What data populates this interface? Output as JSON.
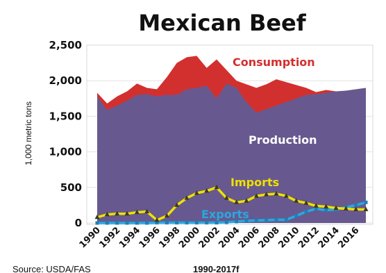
{
  "chart_data": {
    "type": "area",
    "title": "Mexican Beef",
    "ylabel": "1,000 metric tons",
    "ylim": [
      0,
      2500
    ],
    "yticks": [
      "0",
      "500",
      "1,000",
      "1,500",
      "2,000",
      "2,500"
    ],
    "xtick_labels": [
      "1990",
      "1992",
      "1994",
      "1996",
      "1998",
      "2000",
      "2002",
      "2004",
      "2006",
      "2008",
      "2010",
      "2012",
      "2014",
      "2016"
    ],
    "x": [
      1990,
      1991,
      1992,
      1993,
      1994,
      1995,
      1996,
      1997,
      1998,
      1999,
      2000,
      2001,
      2002,
      2003,
      2004,
      2005,
      2006,
      2007,
      2008,
      2009,
      2010,
      2011,
      2012,
      2013,
      2014,
      2015,
      2016,
      2017
    ],
    "series": [
      {
        "name": "Consumption",
        "color": "#d2302f",
        "values": [
          1830,
          1680,
          1780,
          1850,
          1960,
          1900,
          1880,
          2050,
          2250,
          2330,
          2350,
          2180,
          2300,
          2150,
          2000,
          1950,
          1900,
          1950,
          2020,
          1980,
          1940,
          1900,
          1840,
          1870,
          1850,
          1820,
          1800,
          1810
        ]
      },
      {
        "name": "Production",
        "color": "#67598f",
        "values": [
          1780,
          1590,
          1650,
          1720,
          1800,
          1810,
          1780,
          1800,
          1800,
          1880,
          1900,
          1930,
          1750,
          1960,
          1900,
          1700,
          1550,
          1600,
          1650,
          1700,
          1750,
          1800,
          1810,
          1830,
          1850,
          1860,
          1880,
          1900
        ]
      },
      {
        "name": "Imports",
        "color": "#f0e000",
        "values": [
          80,
          120,
          130,
          130,
          150,
          160,
          40,
          100,
          250,
          350,
          420,
          450,
          500,
          350,
          290,
          310,
          380,
          400,
          410,
          380,
          310,
          280,
          240,
          230,
          210,
          200,
          190,
          190
        ]
      },
      {
        "name": "Exports",
        "color": "#29a9df",
        "values": [
          0,
          0,
          0,
          0,
          0,
          0,
          5,
          5,
          5,
          5,
          5,
          5,
          5,
          10,
          20,
          30,
          35,
          40,
          45,
          45,
          100,
          160,
          200,
          180,
          190,
          220,
          250,
          290
        ]
      }
    ],
    "annotations": {
      "consumption": "Consumption",
      "production": "Production",
      "imports": "Imports",
      "exports": "Exports"
    },
    "source_label": "Source:  USDA/FAS",
    "period_label": "1990-2017f"
  }
}
